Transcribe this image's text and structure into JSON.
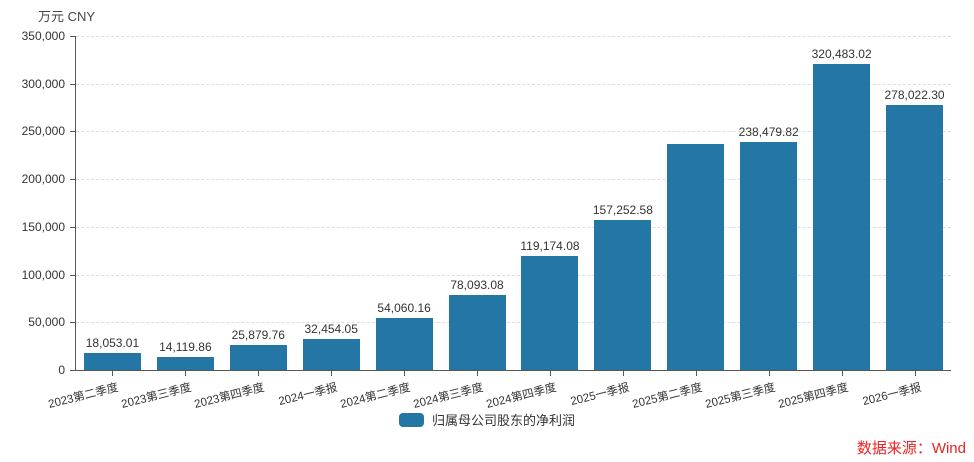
{
  "unit_label": "万元 CNY",
  "legend": {
    "label": "归属母公司股东的净利润"
  },
  "source": {
    "text": "数据来源：Wind",
    "color": "#ee2222"
  },
  "colors": {
    "bar": "#2476a5",
    "grid": "#dddddd",
    "axis": "#555555",
    "text": "#333333",
    "source_red": "#ee2222"
  },
  "y_axis": {
    "tick_labels": [
      "0",
      "50,000",
      "100,000",
      "150,000",
      "200,000",
      "250,000",
      "300,000",
      "350,000"
    ],
    "min": 0,
    "max": 350000,
    "interval": 50000
  },
  "chart_data": {
    "type": "bar",
    "title": "",
    "unit": "万元 CNY",
    "categories": [
      "2023第二季度",
      "2023第三季度",
      "2023第四季度",
      "2024一季报",
      "2024第二季度",
      "2024第三季度",
      "2024第四季度",
      "2025一季报",
      "2025第二季度",
      "2025第三季度",
      "2025第四季度",
      "2026一季报"
    ],
    "series": [
      {
        "name": "归属母公司股东的净利润",
        "values": [
          18053.01,
          14119.86,
          25879.76,
          32454.05,
          54060.16,
          78093.08,
          119174.08,
          157252.58,
          237000,
          238479.82,
          320483.02,
          278022.3
        ]
      }
    ],
    "data_labels": [
      "18,053.01",
      "14,119.86",
      "25,879.76",
      "32,454.05",
      "54,060.16",
      "78,093.08",
      "119,174.08",
      "157,252.58",
      "",
      "238,479.82",
      "320,483.02",
      "278,022.30"
    ],
    "unlabeled_indices": [
      8
    ],
    "estimated_value_indices": [
      8
    ],
    "xlabel": "",
    "ylabel": "万元 CNY",
    "ylim": [
      0,
      350000
    ],
    "grid": true,
    "legend_position": "bottom"
  }
}
